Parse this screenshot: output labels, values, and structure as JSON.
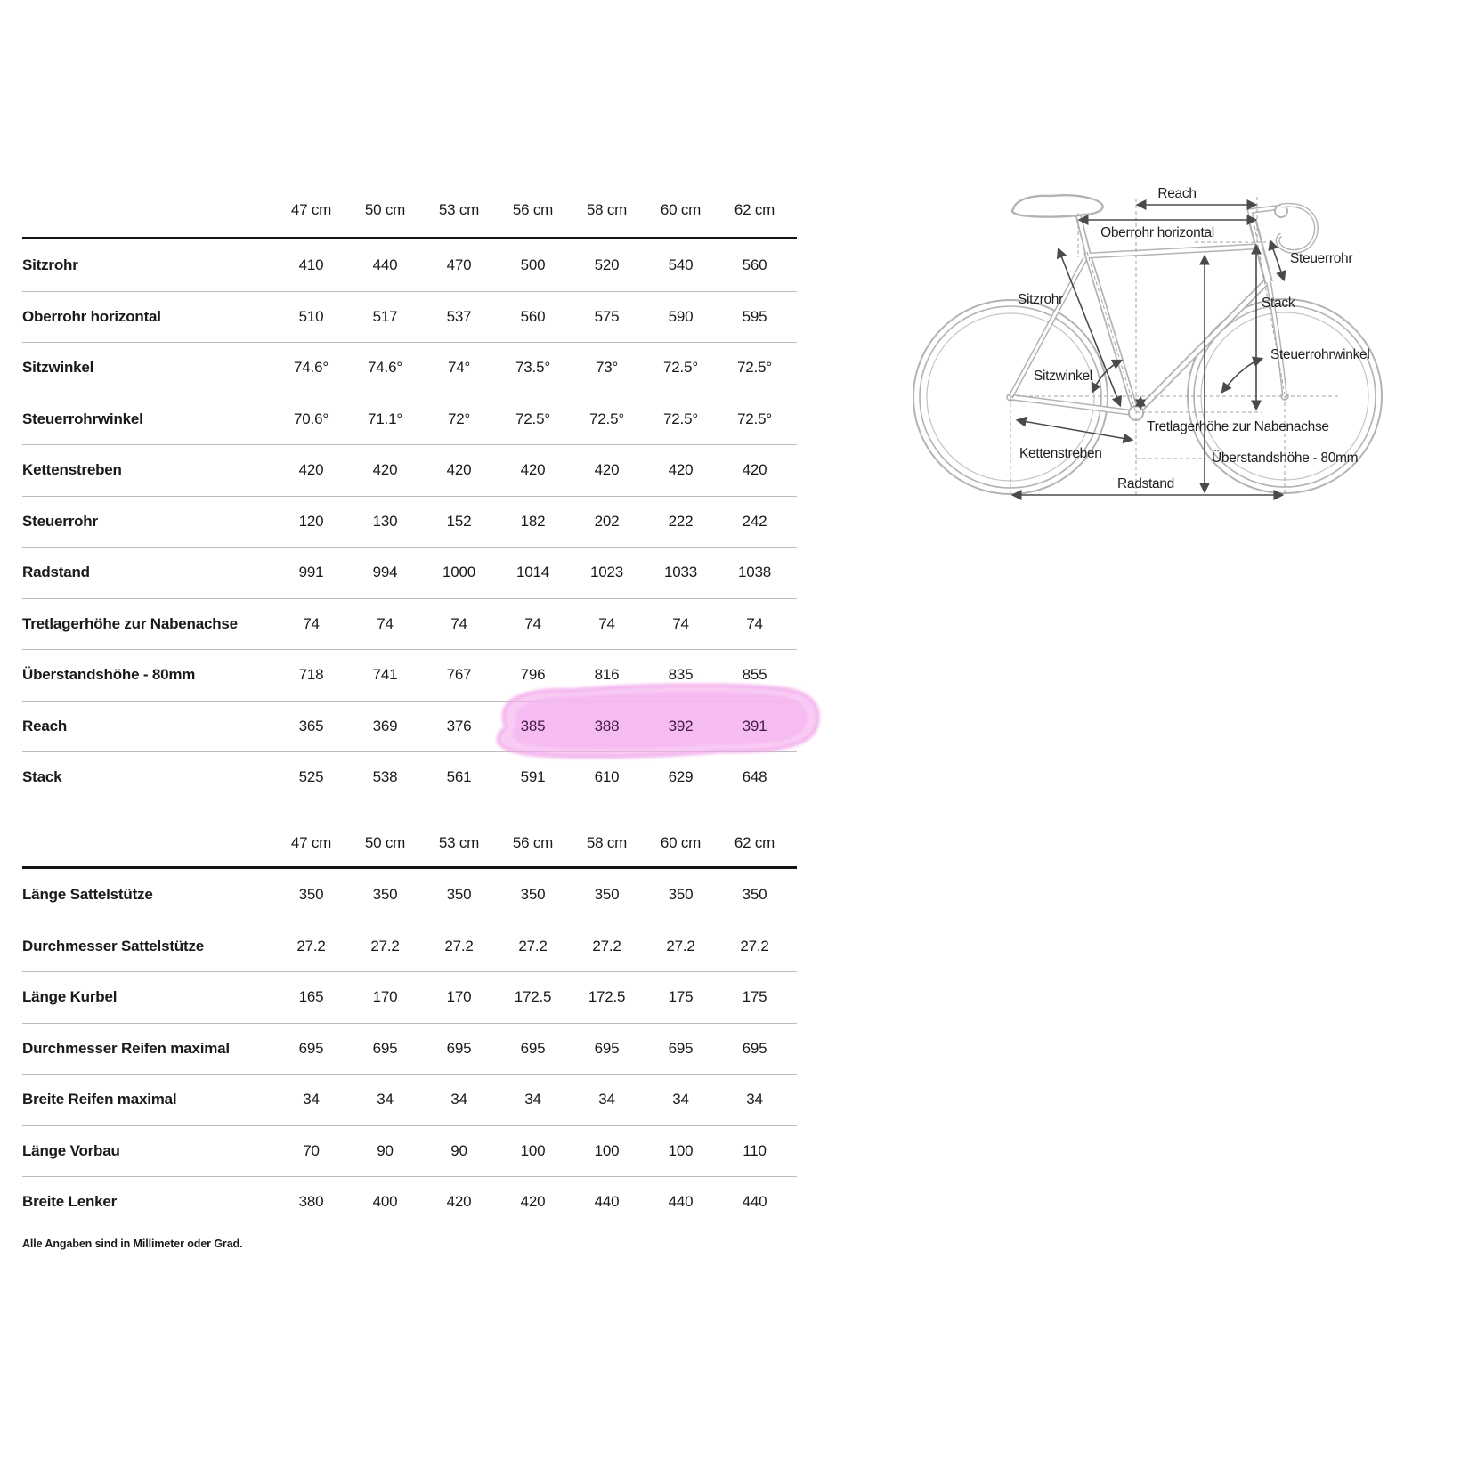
{
  "table1": {
    "columns": [
      "47 cm",
      "50 cm",
      "53 cm",
      "56 cm",
      "58 cm",
      "60 cm",
      "62 cm"
    ],
    "rows": [
      {
        "label": "Sitzrohr",
        "values": [
          "410",
          "440",
          "470",
          "500",
          "520",
          "540",
          "560"
        ]
      },
      {
        "label": "Oberrohr horizontal",
        "values": [
          "510",
          "517",
          "537",
          "560",
          "575",
          "590",
          "595"
        ]
      },
      {
        "label": "Sitzwinkel",
        "values": [
          "74.6°",
          "74.6°",
          "74°",
          "73.5°",
          "73°",
          "72.5°",
          "72.5°"
        ]
      },
      {
        "label": "Steuerrohrwinkel",
        "values": [
          "70.6°",
          "71.1°",
          "72°",
          "72.5°",
          "72.5°",
          "72.5°",
          "72.5°"
        ]
      },
      {
        "label": "Kettenstreben",
        "values": [
          "420",
          "420",
          "420",
          "420",
          "420",
          "420",
          "420"
        ]
      },
      {
        "label": "Steuerrohr",
        "values": [
          "120",
          "130",
          "152",
          "182",
          "202",
          "222",
          "242"
        ]
      },
      {
        "label": "Radstand",
        "values": [
          "991",
          "994",
          "1000",
          "1014",
          "1023",
          "1033",
          "1038"
        ]
      },
      {
        "label": "Tretlagerhöhe zur Nabenachse",
        "values": [
          "74",
          "74",
          "74",
          "74",
          "74",
          "74",
          "74"
        ]
      },
      {
        "label": "Überstandshöhe - 80mm",
        "values": [
          "718",
          "741",
          "767",
          "796",
          "816",
          "835",
          "855"
        ]
      },
      {
        "label": "Reach",
        "values": [
          "365",
          "369",
          "376",
          "385",
          "388",
          "392",
          "391"
        ],
        "highlight_cols": [
          3,
          4,
          5,
          6
        ]
      },
      {
        "label": "Stack",
        "values": [
          "525",
          "538",
          "561",
          "591",
          "610",
          "629",
          "648"
        ]
      }
    ]
  },
  "table2": {
    "columns": [
      "47 cm",
      "50 cm",
      "53 cm",
      "56 cm",
      "58 cm",
      "60 cm",
      "62 cm"
    ],
    "rows": [
      {
        "label": "Länge Sattelstütze",
        "values": [
          "350",
          "350",
          "350",
          "350",
          "350",
          "350",
          "350"
        ]
      },
      {
        "label": "Durchmesser Sattelstütze",
        "values": [
          "27.2",
          "27.2",
          "27.2",
          "27.2",
          "27.2",
          "27.2",
          "27.2"
        ]
      },
      {
        "label": "Länge Kurbel",
        "values": [
          "165",
          "170",
          "170",
          "172.5",
          "172.5",
          "175",
          "175"
        ]
      },
      {
        "label": "Durchmesser Reifen maximal",
        "values": [
          "695",
          "695",
          "695",
          "695",
          "695",
          "695",
          "695"
        ]
      },
      {
        "label": "Breite Reifen maximal",
        "values": [
          "34",
          "34",
          "34",
          "34",
          "34",
          "34",
          "34"
        ]
      },
      {
        "label": "Länge Vorbau",
        "values": [
          "70",
          "90",
          "90",
          "100",
          "100",
          "100",
          "110"
        ]
      },
      {
        "label": "Breite Lenker",
        "values": [
          "380",
          "400",
          "420",
          "420",
          "440",
          "440",
          "440"
        ]
      }
    ]
  },
  "footnote": "Alle Angaben sind in Millimeter oder Grad.",
  "highlight_color": "#f5abee",
  "diagram": {
    "labels": {
      "reach": "Reach",
      "oberrohr": "Oberrohr horizontal",
      "steuerrohr": "Steuerrohr",
      "sitzrohr": "Sitzrohr",
      "stack": "Stack",
      "steuerrohrwinkel": "Steuerrohrwinkel",
      "sitzwinkel": "Sitzwinkel",
      "tretlagerhoehe": "Tretlagerhöhe zur Nabenachse",
      "kettenstreben": "Kettenstreben",
      "ueberstandshoehe": "Überstandshöhe - 80mm",
      "radstand": "Radstand"
    }
  }
}
